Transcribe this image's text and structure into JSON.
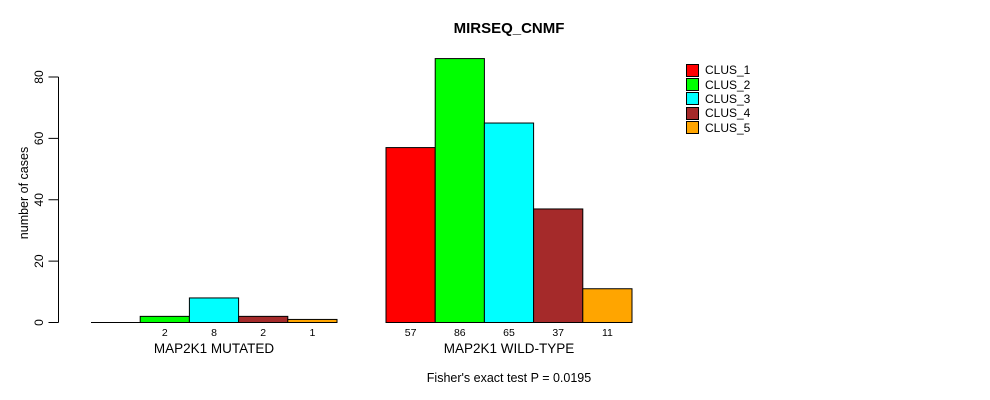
{
  "title": "MIRSEQ_CNMF",
  "subtitle": "Fisher's exact test P = 0.0195",
  "ylabel": "number of cases",
  "chart_data": {
    "type": "bar",
    "title": "MIRSEQ_CNMF",
    "xlabel": "",
    "ylabel": "number of cases",
    "ylim": [
      0,
      86
    ],
    "yticks": [
      0,
      20,
      40,
      60,
      80
    ],
    "grid": false,
    "legend_position": "right",
    "series": [
      "CLUS_1",
      "CLUS_2",
      "CLUS_3",
      "CLUS_4",
      "CLUS_5"
    ],
    "colors": [
      "#FF0000",
      "#00FF00",
      "#00FFFF",
      "#A52A2A",
      "#FFA500"
    ],
    "bar_border_color": "#000000",
    "groups": [
      {
        "label": "MAP2K1 MUTATED",
        "values": [
          0,
          2,
          8,
          2,
          1
        ],
        "value_labels": [
          "",
          "2",
          "8",
          "2",
          "1"
        ]
      },
      {
        "label": "MAP2K1 WILD-TYPE",
        "values": [
          57,
          86,
          65,
          37,
          11
        ],
        "value_labels": [
          "57",
          "86",
          "65",
          "37",
          "11"
        ]
      }
    ],
    "annotation": "Fisher's exact test P = 0.0195"
  },
  "legend": {
    "items": [
      {
        "label": "CLUS_1",
        "color": "#FF0000"
      },
      {
        "label": "CLUS_2",
        "color": "#00FF00"
      },
      {
        "label": "CLUS_3",
        "color": "#00FFFF"
      },
      {
        "label": "CLUS_4",
        "color": "#A52A2A"
      },
      {
        "label": "CLUS_5",
        "color": "#FFA500"
      }
    ]
  }
}
